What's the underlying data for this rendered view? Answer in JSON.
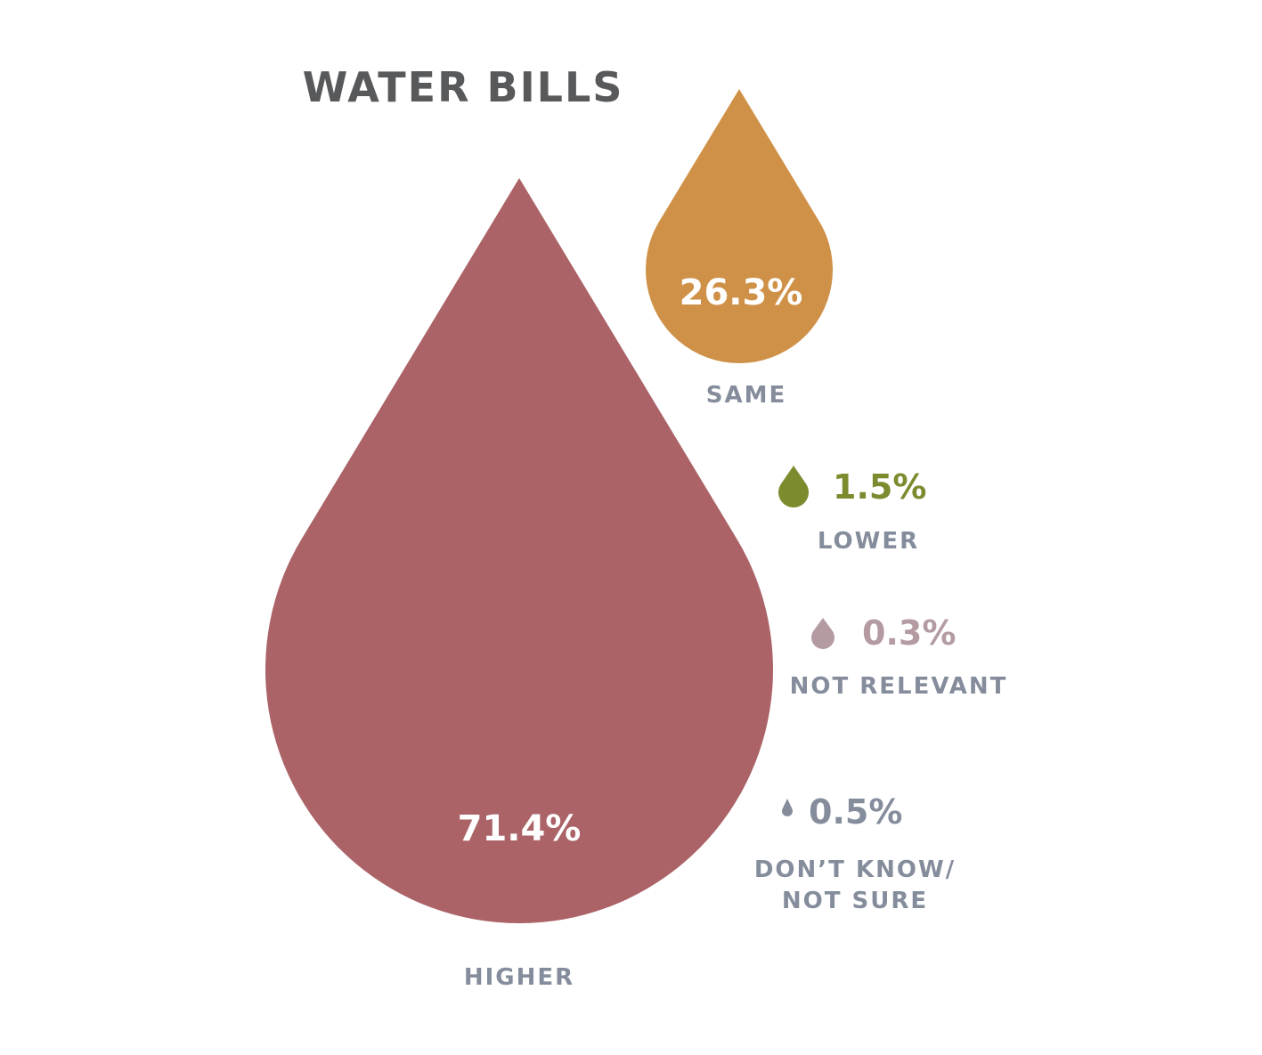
{
  "colors": {
    "title": "#58595b",
    "label": "#858d9c",
    "higher": "#ab6367",
    "same": "#cf9147",
    "lower": "#7d8b2f",
    "not_relevant": "#b39ba1",
    "dont_know": "#858d9c",
    "value_on_drop": "#ffffff"
  },
  "chart_data": {
    "type": "pie",
    "title": "WATER BILLS",
    "series": [
      {
        "name": "HIGHER",
        "value": 71.4,
        "value_label": "71.4%",
        "color": "#ab6367"
      },
      {
        "name": "SAME",
        "value": 26.3,
        "value_label": "26.3%",
        "color": "#cf9147"
      },
      {
        "name": "LOWER",
        "value": 1.5,
        "value_label": "1.5%",
        "color": "#7d8b2f"
      },
      {
        "name": "NOT RELEVANT",
        "value": 0.3,
        "value_label": "0.3%",
        "color": "#b39ba1"
      },
      {
        "name": "DON’T KNOW/ NOT SURE",
        "name_lines": [
          "DON’T KNOW/",
          "NOT SURE"
        ],
        "value": 0.5,
        "value_label": "0.5%",
        "color": "#858d9c"
      }
    ],
    "legend": "none",
    "grid": false
  }
}
